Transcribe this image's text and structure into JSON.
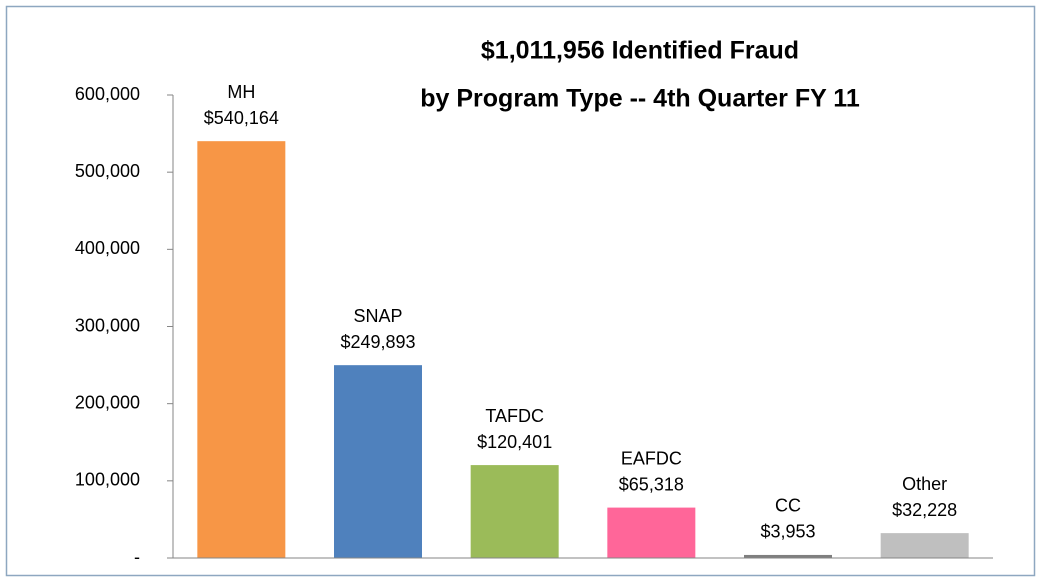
{
  "chart_data": {
    "type": "bar",
    "title": [
      "$1,011,956 Identified Fraud",
      "by Program Type -- 4th Quarter FY 11"
    ],
    "categories": [
      "MH",
      "SNAP",
      "TAFDC",
      "EAFDC",
      "CC",
      "Other"
    ],
    "values": [
      540164,
      249893,
      120401,
      65318,
      3953,
      32228
    ],
    "value_labels": [
      "$540,164",
      "$249,893",
      "$120,401",
      "$65,318",
      "$3,953",
      "$32,228"
    ],
    "colors": [
      "#f79646",
      "#4f81bd",
      "#9bbb59",
      "#ff6699",
      "#7f7f7f",
      "#bfbfbf"
    ],
    "ylim": [
      0,
      600000
    ],
    "yticks": [
      {
        "value": 0,
        "label": "-"
      },
      {
        "value": 100000,
        "label": "100,000"
      },
      {
        "value": 200000,
        "label": "200,000"
      },
      {
        "value": 300000,
        "label": "300,000"
      },
      {
        "value": 400000,
        "label": "400,000"
      },
      {
        "value": 500000,
        "label": "500,000"
      },
      {
        "value": 600000,
        "label": "600,000"
      }
    ],
    "grid": false
  }
}
